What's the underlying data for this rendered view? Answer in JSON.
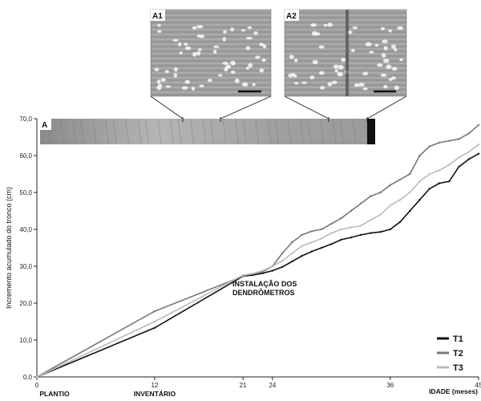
{
  "chart_data": {
    "type": "line",
    "xlabel": "IDADE (meses)",
    "ylabel": "Incremento acumulado do tronco (cm)",
    "xlim": [
      0,
      45
    ],
    "ylim": [
      0,
      70
    ],
    "x_ticks": [
      0,
      12,
      21,
      24,
      36,
      45
    ],
    "x_tick_labels": [
      "0",
      "12",
      "21",
      "24",
      "36",
      "45"
    ],
    "x_tick_captions": [
      {
        "x": 0,
        "text": "PLANTIO"
      },
      {
        "x": 12,
        "text": "INVENTÁRIO"
      }
    ],
    "y_ticks": [
      0,
      10,
      20,
      30,
      40,
      50,
      60,
      70
    ],
    "y_tick_labels": [
      "0,0",
      "10,0",
      "20,0",
      "30,0",
      "40,0",
      "50,0",
      "60,0",
      "70,0"
    ],
    "annotation": [
      "INSTALAÇÃO DOS",
      "DENDRÔMETROS"
    ],
    "legend_position": "bottom-right",
    "grid": false,
    "series": [
      {
        "name": "T1",
        "color": "#111111",
        "x": [
          0,
          12,
          21,
          22,
          23,
          24,
          25,
          26,
          27,
          28,
          29,
          30,
          31,
          32,
          33,
          34,
          35,
          36,
          37,
          38,
          39,
          40,
          41,
          42,
          43,
          44,
          45
        ],
        "y": [
          0,
          13.3,
          27.3,
          27.6,
          28.1,
          28.8,
          29.8,
          31.3,
          32.8,
          34.0,
          35.0,
          36.0,
          37.2,
          37.8,
          38.5,
          39.0,
          39.3,
          40.0,
          42.0,
          45.0,
          48.0,
          51.0,
          52.5,
          53.0,
          57.0,
          59.0,
          60.5
        ]
      },
      {
        "name": "T2",
        "color": "#777777",
        "x": [
          0,
          12,
          21,
          22,
          23,
          24,
          25,
          26,
          27,
          28,
          29,
          30,
          31,
          32,
          33,
          34,
          35,
          36,
          37,
          38,
          39,
          40,
          41,
          42,
          43,
          44,
          45
        ],
        "y": [
          0,
          17.8,
          27.3,
          28.0,
          28.5,
          30.0,
          33.5,
          36.5,
          38.5,
          39.5,
          40.0,
          41.5,
          43.0,
          45.0,
          47.0,
          49.0,
          50.0,
          52.0,
          53.5,
          55.0,
          60.0,
          62.5,
          63.5,
          64.0,
          64.5,
          66.0,
          68.3
        ]
      },
      {
        "name": "T3",
        "color": "#bbbbbb",
        "x": [
          0,
          12,
          21,
          22,
          23,
          24,
          25,
          26,
          27,
          28,
          29,
          30,
          31,
          32,
          33,
          34,
          35,
          36,
          37,
          38,
          39,
          40,
          41,
          42,
          43,
          44,
          45
        ],
        "y": [
          0,
          15.0,
          27.6,
          28.0,
          28.8,
          30.0,
          31.5,
          33.5,
          35.5,
          36.5,
          37.5,
          39.0,
          40.0,
          40.5,
          41.0,
          42.5,
          44.0,
          46.5,
          48.0,
          50.0,
          53.0,
          55.0,
          56.0,
          57.5,
          59.5,
          61.0,
          63.0
        ]
      }
    ]
  },
  "photos": [
    {
      "label": "A1"
    },
    {
      "label": "A2"
    },
    {
      "label": "A"
    }
  ]
}
